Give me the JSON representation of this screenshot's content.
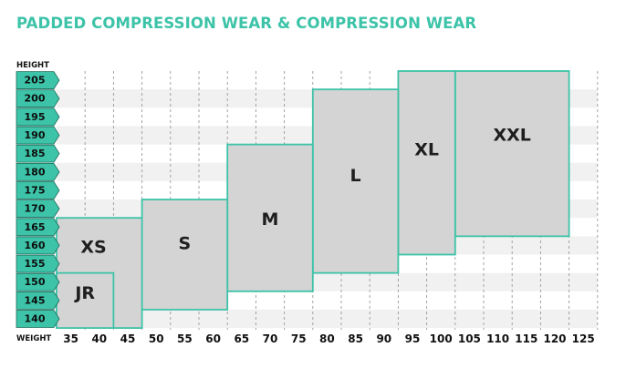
{
  "title": "PADDED COMPRESSION WEAR & COMPRESSION WEAR",
  "colors": {
    "accent": "#3cc3a8",
    "height_tab": "#3cc3a8",
    "box_fill": "#d4d4d4",
    "box_stroke": "#3cc3a8",
    "grid": "#9a9a9a",
    "stripe": "#f1f1f1"
  },
  "chart_data": {
    "type": "table",
    "title": "PADDED COMPRESSION WEAR & COMPRESSION WEAR",
    "xlabel": "WEIGHT",
    "ylabel": "HEIGHT",
    "x_ticks": [
      35,
      40,
      45,
      50,
      55,
      60,
      65,
      70,
      75,
      80,
      85,
      90,
      95,
      100,
      105,
      110,
      115,
      120,
      125
    ],
    "y_ticks": [
      205,
      200,
      195,
      190,
      185,
      180,
      175,
      170,
      165,
      160,
      155,
      150,
      145,
      140
    ],
    "grid": true,
    "sizes": [
      {
        "label": "JR",
        "weight": [
          35,
          45
        ],
        "height": [
          140,
          150
        ]
      },
      {
        "label": "XS",
        "weight": [
          35,
          50
        ],
        "height": [
          140,
          165
        ]
      },
      {
        "label": "S",
        "weight": [
          50,
          65
        ],
        "height": [
          145,
          170
        ]
      },
      {
        "label": "M",
        "weight": [
          65,
          80
        ],
        "height": [
          150,
          185
        ]
      },
      {
        "label": "L",
        "weight": [
          80,
          95
        ],
        "height": [
          155,
          200
        ]
      },
      {
        "label": "XL",
        "weight": [
          95,
          105
        ],
        "height": [
          160,
          205
        ]
      },
      {
        "label": "XXL",
        "weight": [
          105,
          125
        ],
        "height": [
          165,
          205
        ]
      }
    ]
  }
}
